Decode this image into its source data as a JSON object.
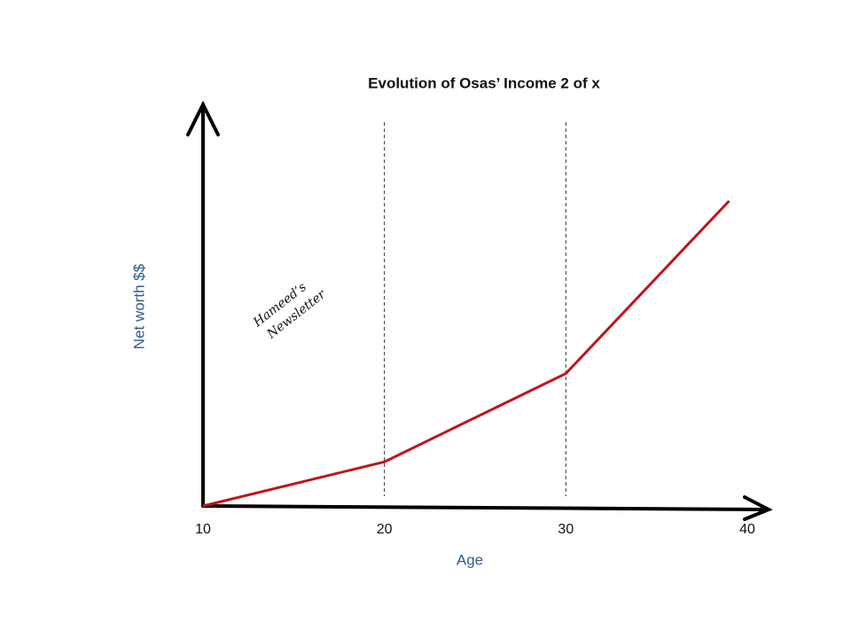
{
  "chart_data": {
    "type": "line",
    "title": "Evolution of Osas’ Income 2 of x",
    "x_label": "Age",
    "y_label": "Net worth $$",
    "annotation": [
      "Hameed’s",
      "Newsletter"
    ],
    "x": [
      10,
      20,
      30,
      39
    ],
    "values": [
      0,
      11,
      33,
      76
    ],
    "color": "#c0141c",
    "xlim": [
      10,
      40
    ],
    "xticks": [
      10,
      20,
      30,
      40
    ],
    "ylim": [
      0,
      100
    ],
    "vlines": [
      20,
      30
    ]
  }
}
